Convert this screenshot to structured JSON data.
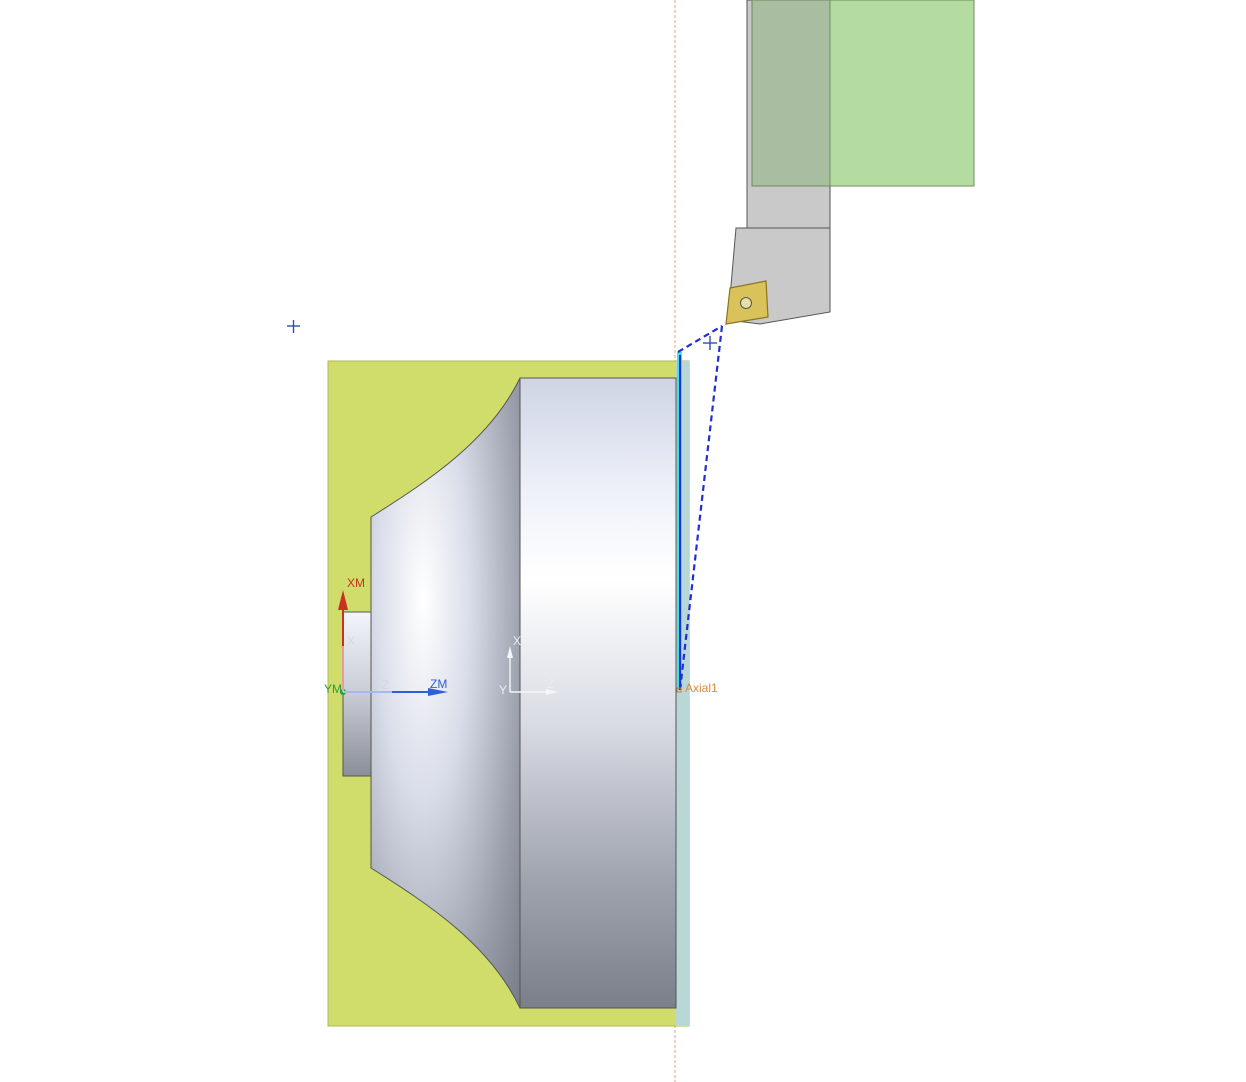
{
  "viewport": {
    "axes_labels": {
      "machine_x": "XM",
      "machine_y": "YM",
      "machine_z": "ZM",
      "work_x": "X",
      "work_z": "Z",
      "work2_x": "X",
      "work2_y": "Y",
      "work2_z": "Z",
      "toolpath_start": "Axial1"
    },
    "colors": {
      "stock": "#d0dd6a",
      "part_light": "#f4f6fb",
      "part_dark": "#7e8290",
      "tool_holder": "#c9c9c9",
      "tool_mount_green": "#b5dca0",
      "insert": "#d9c25a",
      "toolpath": "#1f2fd6",
      "cut_face": "#40e0e8",
      "centerline": "#e8a080",
      "x_axis": "#c8321e",
      "y_axis": "#2e9a3a",
      "z_axis": "#2f5fd8"
    }
  }
}
